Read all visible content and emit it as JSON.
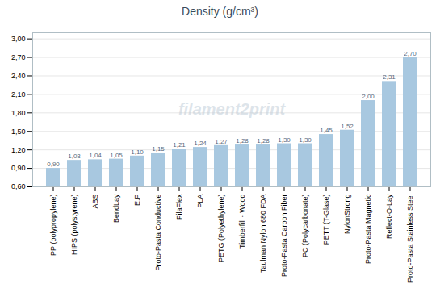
{
  "chart_data": {
    "type": "bar",
    "title": "Density (g/cm³)",
    "categories": [
      "PP (polypropylene)",
      "HIPS (polystyrene)",
      "ABS",
      "BendLay",
      "E.P",
      "Proto-Pasta Conductive",
      "FilaFlex",
      "PLA",
      "PETG (Polyethylene)",
      "Timberfill - Wood",
      "Taulman Nylon 680 FDA",
      "Proto-Pasta Carbon Fiber",
      "PC (Polycarbonate)",
      "PETT (T-Glase)",
      "NylonStrong",
      "Proto-Pasta Magnetic",
      "Reflect-O-Lay",
      "Proto-Pasta Stainless Steel"
    ],
    "values": [
      0.9,
      1.03,
      1.04,
      1.05,
      1.1,
      1.15,
      1.21,
      1.24,
      1.27,
      1.28,
      1.28,
      1.3,
      1.3,
      1.45,
      1.52,
      2.0,
      2.31,
      2.7
    ],
    "value_labels": [
      "0,90",
      "1,03",
      "1,04",
      "1,05",
      "1,10",
      "1,15",
      "1,21",
      "1,24",
      "1,27",
      "1,28",
      "1,28",
      "1,30",
      "1,30",
      "1,45",
      "1,52",
      "2,00",
      "2,31",
      "2,70"
    ],
    "data_labels": true,
    "color": "#a8c8e0",
    "ylim": [
      0.6,
      3.1
    ],
    "yticks": [
      {
        "value": 0.6,
        "label": "0,60"
      },
      {
        "value": 0.9,
        "label": "0,90"
      },
      {
        "value": 1.2,
        "label": "1,20"
      },
      {
        "value": 1.5,
        "label": "1,50"
      },
      {
        "value": 1.8,
        "label": "1,80"
      },
      {
        "value": 2.1,
        "label": "2,10"
      },
      {
        "value": 2.4,
        "label": "2,40"
      },
      {
        "value": 2.7,
        "label": "2,70"
      },
      {
        "value": 3.0,
        "label": "3,00"
      }
    ],
    "grid": true,
    "annotations": [
      "filament2print"
    ]
  }
}
